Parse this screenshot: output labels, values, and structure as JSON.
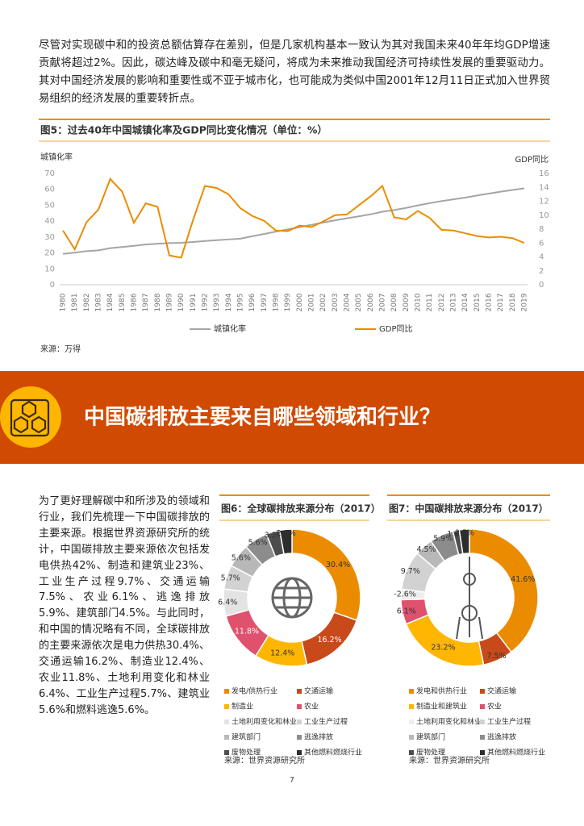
{
  "intro": "尽管对实现碳中和的投资总额估算存在差别，但是几家机构基本一致认为其对我国未来40年年均GDP增速贡献将超过2%。因此，碳达峰及碳中和毫无疑问，将成为未来推动我国经济可持续性发展的重要驱动力。其对中国经济发展的影响和重要性或不亚于城市化，也可能成为类似中国2001年12月11日正式加入世界贸易组织的经济发展的重要转折点。",
  "figure5": {
    "type": "line",
    "title": "图5：过去40年中国城镇化率及GDP同比变化情况（单位：%）",
    "y_label": "城镇化率",
    "y2_label": "GDP同比",
    "categories": [
      "1980",
      "1981",
      "1982",
      "1983",
      "1984",
      "1985",
      "1986",
      "1987",
      "1988",
      "1989",
      "1990",
      "1991",
      "1992",
      "1993",
      "1994",
      "1995",
      "1996",
      "1997",
      "1998",
      "1999",
      "2000",
      "2001",
      "2002",
      "2003",
      "2004",
      "2005",
      "2006",
      "2007",
      "2008",
      "2009",
      "2010",
      "2011",
      "2012",
      "2013",
      "2014",
      "2015",
      "2016",
      "2017",
      "2018",
      "2019"
    ],
    "series": [
      {
        "name": "城镇化率",
        "color": "#a5a5a5",
        "values": [
          19.4,
          20.2,
          21.1,
          21.6,
          23.0,
          23.7,
          24.5,
          25.3,
          25.8,
          26.2,
          26.4,
          26.9,
          27.5,
          28.0,
          28.5,
          29.0,
          30.5,
          31.9,
          33.4,
          34.8,
          36.2,
          37.7,
          39.1,
          40.5,
          41.8,
          43.0,
          44.3,
          45.9,
          47.0,
          48.3,
          49.9,
          51.3,
          52.6,
          53.7,
          54.8,
          56.1,
          57.3,
          58.5,
          59.6,
          60.6
        ]
      },
      {
        "name": "GDP同比",
        "color": "#eb8c00",
        "axis": "y2",
        "values": [
          7.8,
          5.1,
          9.0,
          10.8,
          15.2,
          13.4,
          8.9,
          11.7,
          11.2,
          4.2,
          3.9,
          9.3,
          14.2,
          13.9,
          13.0,
          11.0,
          9.9,
          9.2,
          7.8,
          7.7,
          8.5,
          8.3,
          9.1,
          10.0,
          10.1,
          11.4,
          12.7,
          14.2,
          9.7,
          9.4,
          10.6,
          9.6,
          7.9,
          7.8,
          7.4,
          7.0,
          6.8,
          6.9,
          6.7,
          6.0
        ]
      }
    ],
    "ylim": [
      0,
      70
    ],
    "yticks": [
      0,
      10,
      20,
      30,
      40,
      50,
      60,
      70
    ],
    "y2lim": [
      0,
      16
    ],
    "y2ticks": [
      0,
      2,
      4,
      6,
      8,
      10,
      12,
      14,
      16
    ],
    "source": "来源：万得"
  },
  "banner": {
    "title": "中国碳排放主要来自哪些领域和行业？"
  },
  "body": "为了更好理解碳中和所涉及的领域和行业，我们先梳理一下中国碳排放的主要来源。根据世界资源研究所的统计，中国碳排放主要来源依次包括发电供热42%、制造和建筑业23%、工业生产过程9.7%、交通运输7.5%、农业6.1%、逃逸排放5.9%、建筑部门4.5%。与此同时，和中国的情况略有不同，全球碳排放的主要来源依次是电力供热30.4%、交通运输16.2%、制造业12.4%、农业11.8%、土地利用变化和林业6.4%、工业生产过程5.7%、建筑业5.6%和燃料逃逸5.6%。",
  "figure6": {
    "type": "donut",
    "title": "图6：全球碳排放来源分布（2017）",
    "categories": [
      "发电/供热行业",
      "交通运输",
      "制造业",
      "农业",
      "土地利用变化和林业",
      "工业生产过程",
      "建筑部门",
      "逃逸排放",
      "废物处理",
      "其他燃料燃烧行业"
    ],
    "values": [
      30.4,
      16.2,
      12.4,
      11.8,
      6.4,
      5.7,
      5.6,
      5.6,
      3.2,
      2.9
    ],
    "value_labels": [
      "30.4%",
      "16.2%",
      "12.4%",
      "11.8%",
      "6.4%",
      "5.7%",
      "5.6%",
      "5.6%",
      "3.2%",
      "2.9%"
    ],
    "colors": [
      "#eb8c00",
      "#c8491a",
      "#ffb600",
      "#e0516d",
      "#e3e3e3",
      "#d2d2d2",
      "#b8b8b8",
      "#8c8c8c",
      "#4d4d4d",
      "#2d2d2d"
    ],
    "source": "来源：世界资源研究所"
  },
  "figure7": {
    "type": "donut",
    "title": "图7：中国碳排放来源分布（2017）",
    "categories": [
      "发电和供热行业",
      "交通运输",
      "制造业和建筑业",
      "农业",
      "土地利用变化和林业",
      "工业生产过程",
      "建筑部门",
      "逃逸排放",
      "废物处理",
      "其他燃料燃烧行业"
    ],
    "values": [
      41.6,
      7.5,
      23.2,
      6.1,
      -2.6,
      9.7,
      4.5,
      5.9,
      1.6,
      2.5
    ],
    "value_labels": [
      "41.6%",
      "7.5%",
      "23.2%",
      "6.1%",
      "-2.6%",
      "9.7%",
      "4.5%",
      "5.9%",
      "1.6%",
      "2.5%"
    ],
    "colors": [
      "#eb8c00",
      "#c8491a",
      "#ffb600",
      "#e0516d",
      "#eeeeee",
      "#d2d2d2",
      "#b8b8b8",
      "#8c8c8c",
      "#4d4d4d",
      "#2d2d2d"
    ],
    "source": "来源：世界资源研究所"
  },
  "page_number": "7"
}
